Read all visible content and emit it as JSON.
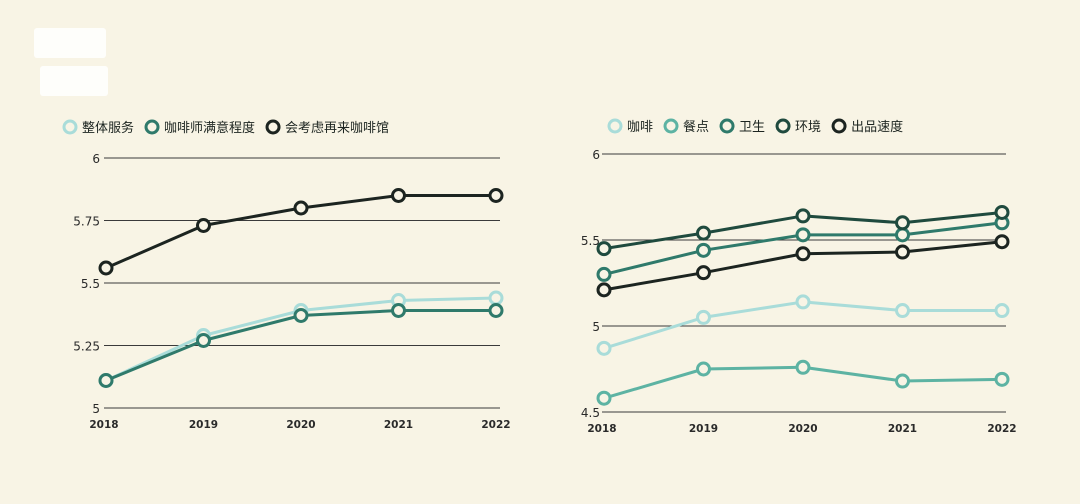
{
  "colors": {
    "background": "#f8f4e5",
    "gridline": "#3a3a3a",
    "light_mint": "#a9dcd9",
    "teal": "#5db3a3",
    "mid_green": "#2f7a6b",
    "dark_green": "#1f4a3e",
    "near_black": "#1c2420"
  },
  "chart_data": [
    {
      "type": "line",
      "x": [
        "2018",
        "2019",
        "2020",
        "2021",
        "2022"
      ],
      "ylim": [
        5,
        6
      ],
      "yticks": [
        "5",
        "5.25",
        "5.5",
        "5.75",
        "6"
      ],
      "ytick_values": [
        5,
        5.25,
        5.5,
        5.75,
        6
      ],
      "grid": true,
      "legend_position": "top-left",
      "series": [
        {
          "name": "整体服务",
          "color": "#a9dcd9",
          "values": [
            5.11,
            5.29,
            5.39,
            5.43,
            5.44
          ]
        },
        {
          "name": "咖啡师满意程度",
          "color": "#2f7a6b",
          "values": [
            5.11,
            5.27,
            5.37,
            5.39,
            5.39
          ]
        },
        {
          "name": "会考虑再来咖啡馆",
          "color": "#1c2420",
          "values": [
            5.56,
            5.73,
            5.8,
            5.85,
            5.85
          ]
        }
      ]
    },
    {
      "type": "line",
      "x": [
        "2018",
        "2019",
        "2020",
        "2021",
        "2022"
      ],
      "ylim": [
        4.5,
        6
      ],
      "yticks": [
        "4.5",
        "5",
        "5.5",
        "6"
      ],
      "ytick_values": [
        4.5,
        5,
        5.5,
        6
      ],
      "grid": true,
      "legend_position": "top-left",
      "series": [
        {
          "name": "咖啡",
          "color": "#a9dcd9",
          "values": [
            4.87,
            5.05,
            5.14,
            5.09,
            5.09
          ]
        },
        {
          "name": "餐点",
          "color": "#5db3a3",
          "values": [
            4.58,
            4.75,
            4.76,
            4.68,
            4.69
          ]
        },
        {
          "name": "卫生",
          "color": "#2f7a6b",
          "values": [
            5.3,
            5.44,
            5.53,
            5.53,
            5.6
          ]
        },
        {
          "name": "环境",
          "color": "#1f4a3e",
          "values": [
            5.45,
            5.54,
            5.64,
            5.6,
            5.66
          ]
        },
        {
          "name": "出品速度",
          "color": "#1c2420",
          "values": [
            5.21,
            5.31,
            5.42,
            5.43,
            5.49
          ]
        }
      ]
    }
  ]
}
